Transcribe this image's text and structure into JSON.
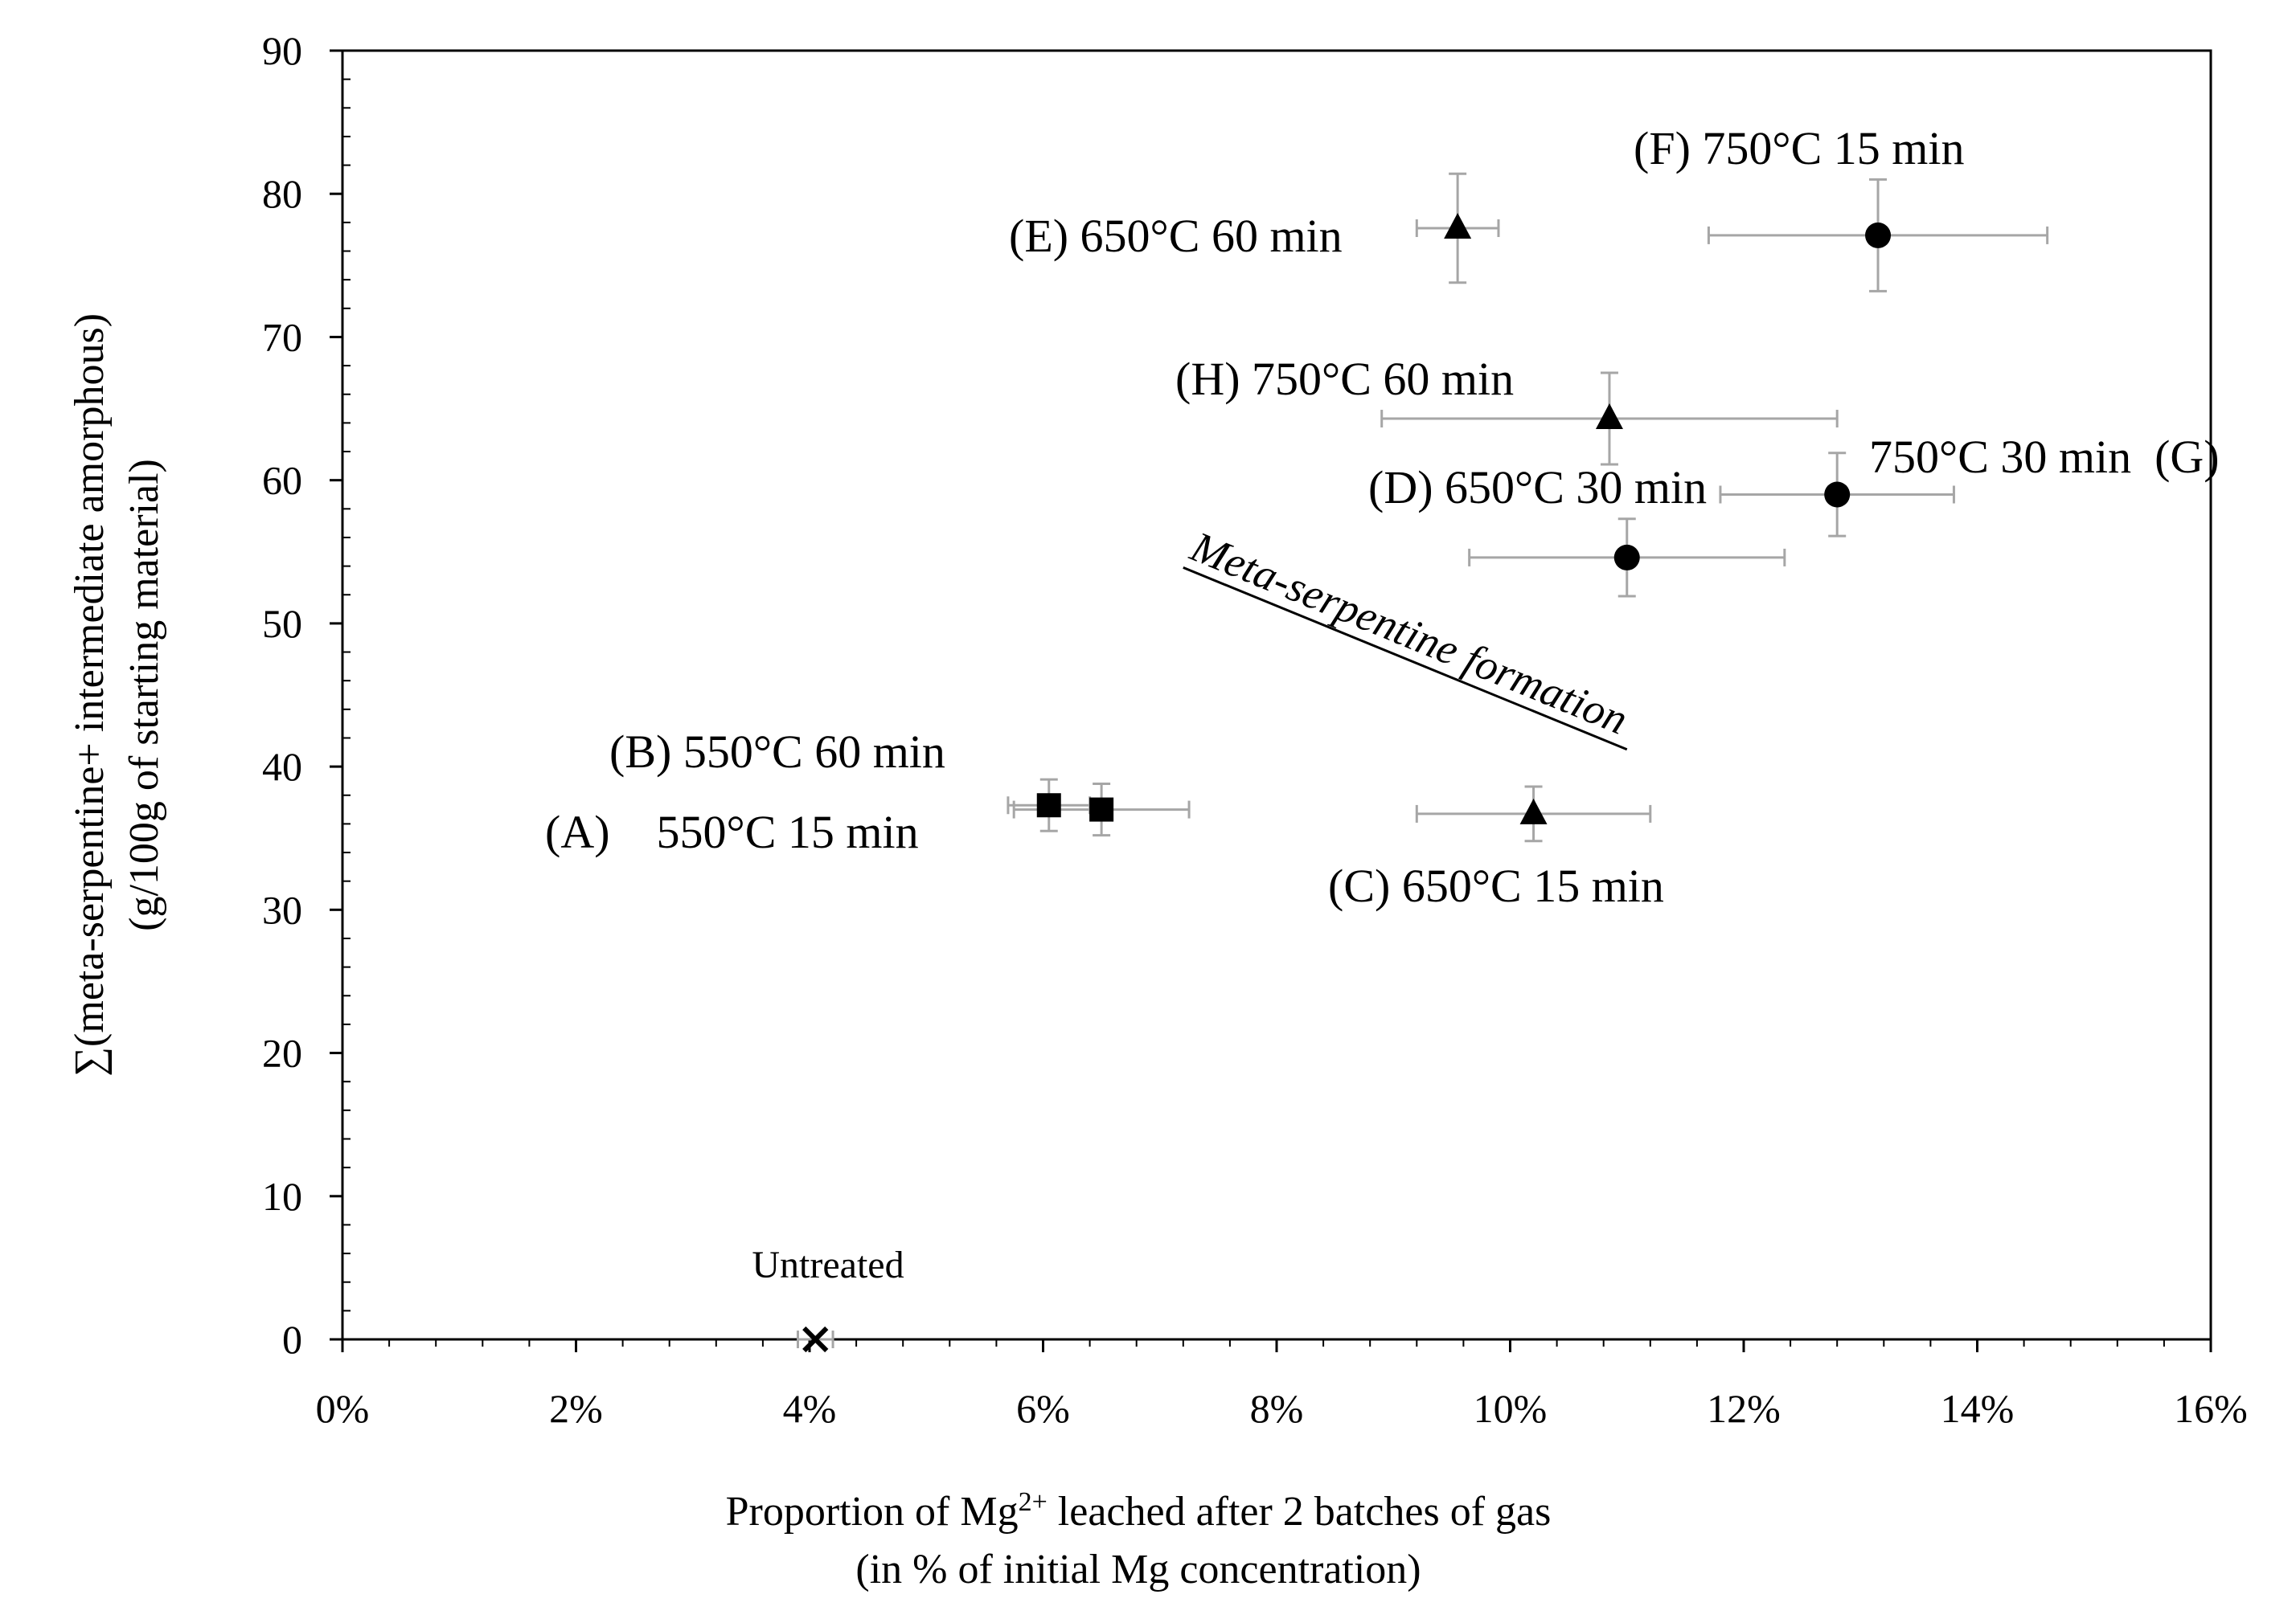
{
  "chart_data": {
    "type": "scatter",
    "xlabel_line1": "Proportion of Mg",
    "xlabel_sup": "2+",
    "xlabel_line1_rest": " leached after 2 batches of gas",
    "xlabel_line2": "(in % of initial Mg concentration)",
    "ylabel_line1": "∑(meta-serpentine+ intermediate amorphous)",
    "ylabel_line2": "(g/100g of starting material)",
    "xlim": [
      0,
      16
    ],
    "ylim": [
      0,
      90
    ],
    "x_ticks": [
      {
        "value": 0,
        "label": "0%"
      },
      {
        "value": 2,
        "label": "2%"
      },
      {
        "value": 4,
        "label": "4%"
      },
      {
        "value": 6,
        "label": "6%"
      },
      {
        "value": 8,
        "label": "8%"
      },
      {
        "value": 10,
        "label": "10%"
      },
      {
        "value": 12,
        "label": "12%"
      },
      {
        "value": 14,
        "label": "14%"
      },
      {
        "value": 16,
        "label": "16%"
      }
    ],
    "y_ticks": [
      {
        "value": 0,
        "label": "0"
      },
      {
        "value": 10,
        "label": "10"
      },
      {
        "value": 20,
        "label": "20"
      },
      {
        "value": 30,
        "label": "30"
      },
      {
        "value": 40,
        "label": "40"
      },
      {
        "value": 50,
        "label": "50"
      },
      {
        "value": 60,
        "label": "60"
      },
      {
        "value": 70,
        "label": "70"
      },
      {
        "value": 80,
        "label": "80"
      },
      {
        "value": 90,
        "label": "90"
      }
    ],
    "points": [
      {
        "id": "A",
        "marker": "square",
        "x": 6.05,
        "y": 37.3,
        "xerr": 0.35,
        "yerr": 1.8,
        "label": "(A)    550°C 15 min"
      },
      {
        "id": "B",
        "marker": "square",
        "x": 6.5,
        "y": 37.0,
        "xerr": 0.75,
        "yerr": 1.8,
        "label": "(B) 550°C 60 min"
      },
      {
        "id": "C",
        "marker": "triangle",
        "x": 10.2,
        "y": 36.7,
        "xerr": 1.0,
        "yerr": 1.9,
        "label": "(C) 650°C 15 min"
      },
      {
        "id": "D",
        "marker": "circle",
        "x": 11.0,
        "y": 54.6,
        "xerr": 1.35,
        "yerr": 2.7,
        "label": "(D) 650°C 30 min"
      },
      {
        "id": "E",
        "marker": "triangle",
        "x": 9.55,
        "y": 77.6,
        "xerr": 0.35,
        "yerr": 3.8,
        "label": "(E) 650°C 60 min"
      },
      {
        "id": "F",
        "marker": "circle",
        "x": 13.15,
        "y": 77.1,
        "xerr": 1.45,
        "yerr": 3.9,
        "label": "(F) 750°C 15 min"
      },
      {
        "id": "G",
        "marker": "circle",
        "x": 12.8,
        "y": 59.0,
        "xerr": 1.0,
        "yerr": 2.9,
        "label": "750°C 30 min  (G)"
      },
      {
        "id": "H",
        "marker": "triangle",
        "x": 10.85,
        "y": 64.3,
        "xerr": 1.95,
        "yerr": 3.2,
        "label": "(H) 750°C 60 min"
      },
      {
        "id": "U",
        "marker": "x",
        "x": 4.05,
        "y": 0,
        "xerr": 0.15,
        "yerr": 0,
        "label": "Untreated"
      }
    ],
    "annotation": {
      "text": "Meta-serpentine formation",
      "x_start": 7.2,
      "y_start": 53.9,
      "x_end": 11.0,
      "y_end": 41.2
    },
    "grid": false,
    "legend": "none"
  }
}
